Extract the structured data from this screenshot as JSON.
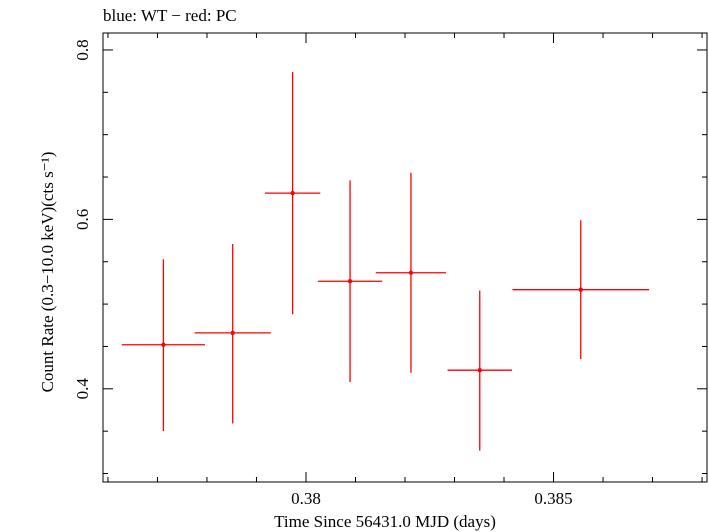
{
  "chart_data": {
    "type": "scatter",
    "title": "blue: WT − red: PC",
    "xlabel": "Time Since 56431.0 MJD (days)",
    "ylabel": "Count Rate (0.3−10.0 keV)(cts s⁻¹)",
    "xlim": [
      0.3759,
      0.3881
    ],
    "ylim": [
      0.29,
      0.82
    ],
    "x_ticks": [
      {
        "value": 0.38,
        "label": "0.38"
      },
      {
        "value": 0.385,
        "label": "0.385"
      }
    ],
    "y_ticks": [
      {
        "value": 0.4,
        "label": "0.4"
      },
      {
        "value": 0.6,
        "label": "0.6"
      },
      {
        "value": 0.8,
        "label": "0.8"
      }
    ],
    "series": [
      {
        "name": "PC",
        "color": "#ff0000",
        "points": [
          {
            "x": 0.37712,
            "xerr": 0.00084,
            "y": 0.452,
            "yerr_low": 0.102,
            "yerr_high": 0.101
          },
          {
            "x": 0.37852,
            "xerr": 0.00077,
            "y": 0.466,
            "yerr_low": 0.107,
            "yerr_high": 0.105
          },
          {
            "x": 0.37973,
            "xerr": 0.00056,
            "y": 0.631,
            "yerr_low": 0.143,
            "yerr_high": 0.143
          },
          {
            "x": 0.38089,
            "xerr": 0.00065,
            "y": 0.527,
            "yerr_low": 0.119,
            "yerr_high": 0.119
          },
          {
            "x": 0.38212,
            "xerr": 0.00071,
            "y": 0.537,
            "yerr_low": 0.118,
            "yerr_high": 0.118
          },
          {
            "x": 0.38351,
            "xerr": 0.00065,
            "y": 0.422,
            "yerr_low": 0.095,
            "yerr_high": 0.094
          },
          {
            "x": 0.38555,
            "xerr": 0.00138,
            "y": 0.517,
            "yerr_low": 0.082,
            "yerr_high": 0.082
          }
        ]
      }
    ]
  }
}
